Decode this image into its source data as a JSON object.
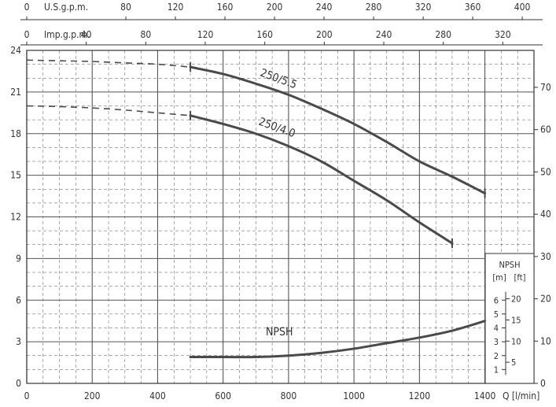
{
  "chart_data": {
    "type": "line",
    "title": "",
    "x": {
      "label": "Q [l/min]",
      "ticks": [
        0,
        200,
        400,
        600,
        800,
        1000,
        1200,
        1400
      ],
      "range": [
        0,
        1550
      ]
    },
    "y_left": {
      "unit": "m",
      "ticks": [
        0,
        3,
        6,
        9,
        12,
        15,
        18,
        21,
        24
      ],
      "range": [
        0,
        24
      ]
    },
    "y_right": {
      "unit": "ft",
      "ticks": [
        0,
        10,
        20,
        30,
        40,
        50,
        60,
        70
      ]
    },
    "top_axes": [
      {
        "label": "U.S.g.p.m.",
        "ticks": [
          0,
          80,
          120,
          160,
          200,
          240,
          280,
          320,
          360,
          400
        ]
      },
      {
        "label": "Imp.g.p.m.",
        "ticks": [
          0,
          40,
          80,
          120,
          160,
          200,
          240,
          280,
          320
        ]
      }
    ],
    "series": [
      {
        "name": "250/5.5",
        "x": [
          500,
          600,
          700,
          800,
          900,
          1000,
          1100,
          1200,
          1300,
          1400
        ],
        "y": [
          22.8,
          22.3,
          21.6,
          20.8,
          19.8,
          18.7,
          17.4,
          16.0,
          14.9,
          13.7
        ],
        "dashed_x": [
          0,
          100,
          200,
          300,
          400,
          500
        ],
        "dashed_y": [
          23.3,
          23.25,
          23.2,
          23.1,
          23.0,
          22.8
        ]
      },
      {
        "name": "250/4.0",
        "x": [
          500,
          600,
          700,
          800,
          900,
          1000,
          1100,
          1200,
          1300
        ],
        "y": [
          19.3,
          18.7,
          18.0,
          17.1,
          16.0,
          14.6,
          13.2,
          11.6,
          10.1
        ],
        "dashed_x": [
          0,
          100,
          200,
          300,
          400,
          500
        ],
        "dashed_y": [
          20.0,
          19.95,
          19.85,
          19.7,
          19.5,
          19.3
        ]
      },
      {
        "name": "NPSH",
        "x": [
          500,
          600,
          700,
          800,
          900,
          1000,
          1100,
          1200,
          1300,
          1400
        ],
        "y": [
          1.9,
          1.9,
          1.9,
          2.0,
          2.2,
          2.5,
          2.9,
          3.3,
          3.8,
          4.5
        ]
      }
    ],
    "npsh_inset": {
      "title": "NPSH",
      "m_label": "[m]",
      "ft_label": "[ft]",
      "m_ticks": [
        1,
        2,
        3,
        4,
        5,
        6
      ],
      "ft_ticks": [
        5,
        10,
        15,
        20
      ]
    },
    "grid": true,
    "colors": {
      "curve": "#4a4a4a",
      "grid": "#555555",
      "text": "#333333"
    }
  }
}
